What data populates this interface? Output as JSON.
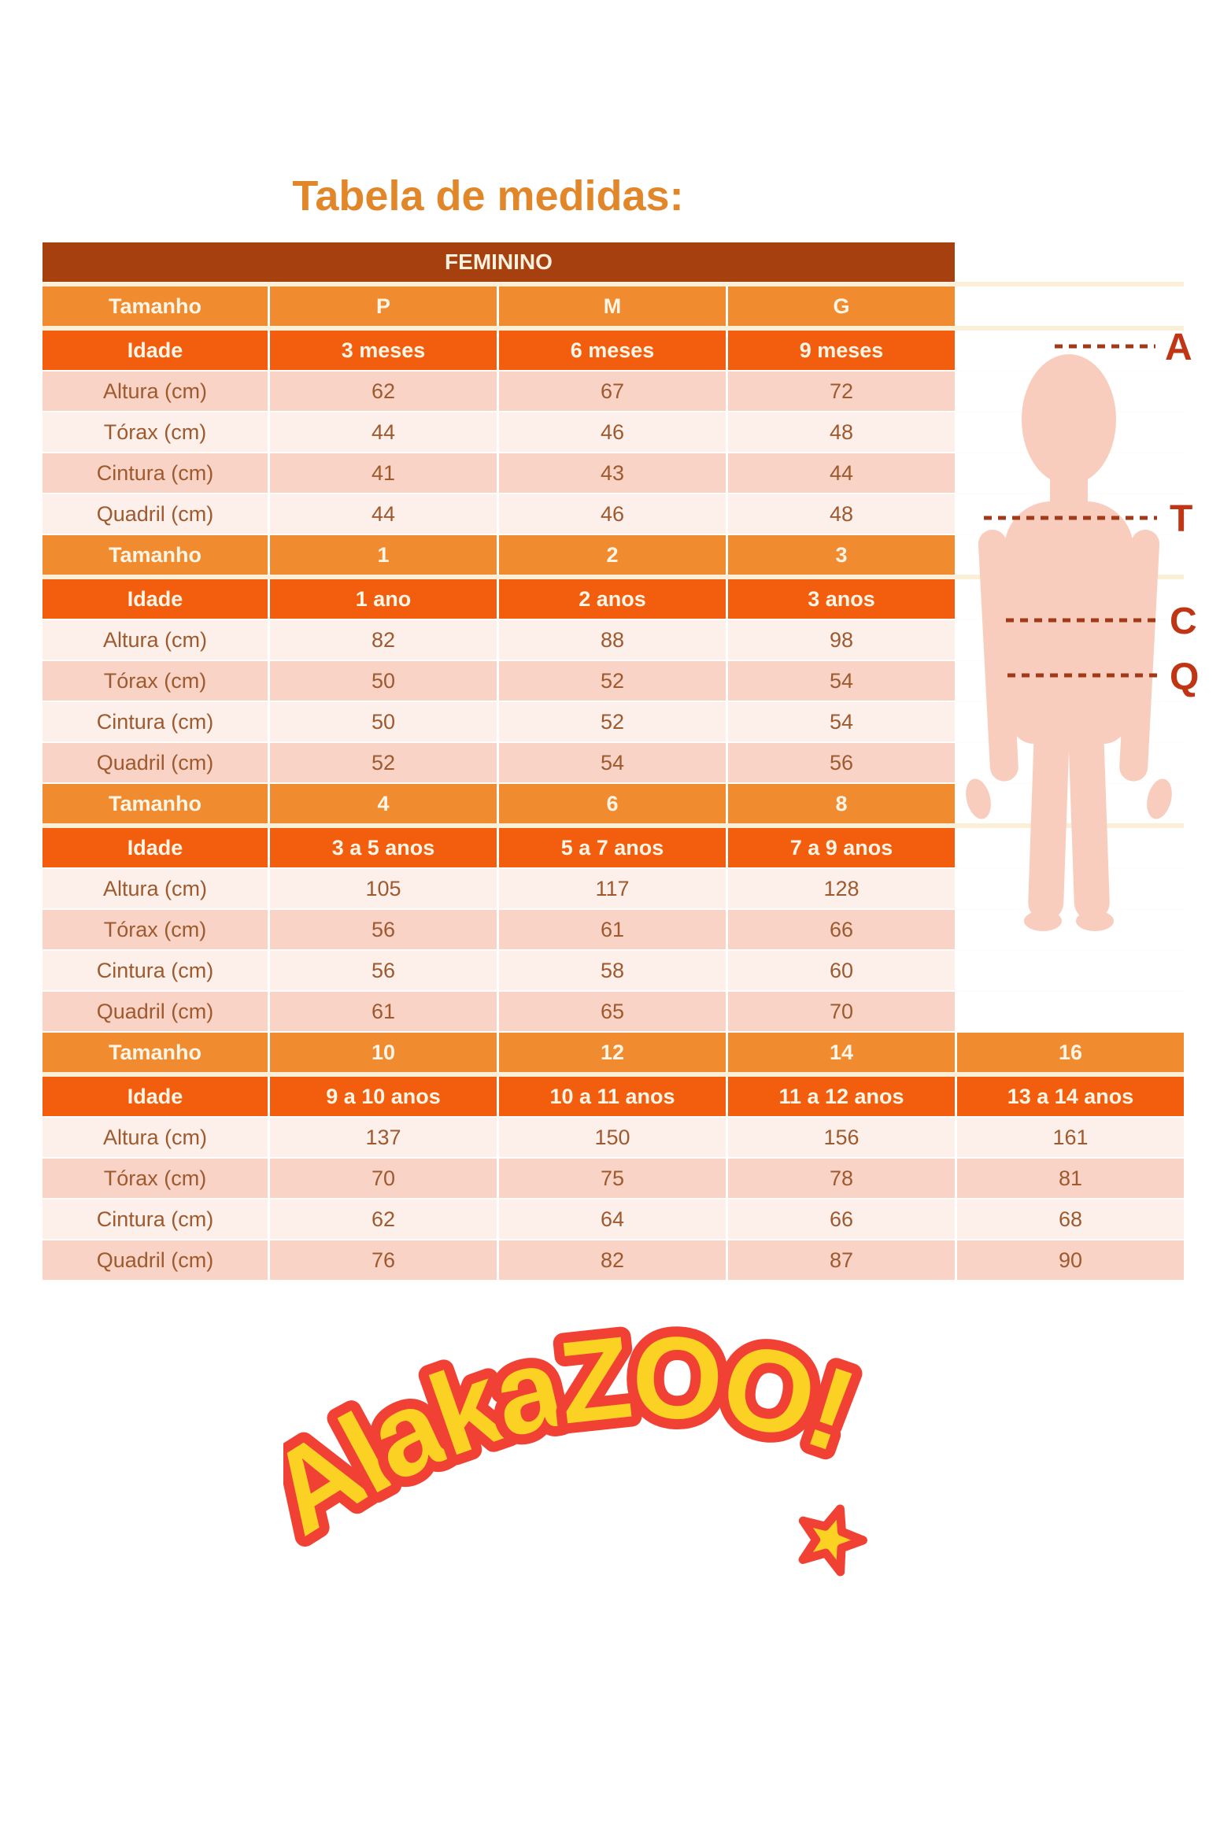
{
  "page": {
    "title": "Tabela de medidas:"
  },
  "colors": {
    "title": "#E2862A",
    "gender_header_bg": "#A6400F",
    "size_row_bg": "#F18B30",
    "age_row_bg": "#F25E0D",
    "header_text": "#FDF5E6",
    "row_dark": "#F9D3C5",
    "row_light": "#FDF0EB",
    "cell_text": "#9E5A2E",
    "separator": "#FBEFD8",
    "dash_line": "#A03A18",
    "measure_letter": "#C03514",
    "silhouette": "#F8CDBE",
    "logo_yellow": "#FBD224",
    "logo_red": "#F04134"
  },
  "table": {
    "gender_header": "FEMININO",
    "row_labels": {
      "size": "Tamanho",
      "age": "Idade",
      "height": "Altura (cm)",
      "chest": "Tórax (cm)",
      "waist": "Cintura (cm)",
      "hip": "Quadril (cm)"
    },
    "sections": [
      {
        "zebra_start": "dark",
        "sizes": [
          "P",
          "M",
          "G"
        ],
        "ages": [
          "3 meses",
          "6 meses",
          "9 meses"
        ],
        "height": [
          "62",
          "67",
          "72"
        ],
        "chest": [
          "44",
          "46",
          "48"
        ],
        "waist": [
          "41",
          "43",
          "44"
        ],
        "hip": [
          "44",
          "46",
          "48"
        ]
      },
      {
        "zebra_start": "light",
        "sizes": [
          "1",
          "2",
          "3"
        ],
        "ages": [
          "1 ano",
          "2 anos",
          "3 anos"
        ],
        "height": [
          "82",
          "88",
          "98"
        ],
        "chest": [
          "50",
          "52",
          "54"
        ],
        "waist": [
          "50",
          "52",
          "54"
        ],
        "hip": [
          "52",
          "54",
          "56"
        ]
      },
      {
        "zebra_start": "light",
        "sizes": [
          "4",
          "6",
          "8"
        ],
        "ages": [
          "3 a 5 anos",
          "5 a 7 anos",
          "7 a 9 anos"
        ],
        "height": [
          "105",
          "117",
          "128"
        ],
        "chest": [
          "56",
          "61",
          "66"
        ],
        "waist": [
          "56",
          "58",
          "60"
        ],
        "hip": [
          "61",
          "65",
          "70"
        ]
      },
      {
        "zebra_start": "light",
        "sizes": [
          "10",
          "12",
          "14",
          "16"
        ],
        "ages": [
          "9 a 10 anos",
          "10 a 11 anos",
          "11 a 12 anos",
          "13 a 14 anos"
        ],
        "height": [
          "137",
          "150",
          "156",
          "161"
        ],
        "chest": [
          "70",
          "75",
          "78",
          "81"
        ],
        "waist": [
          "62",
          "64",
          "66",
          "68"
        ],
        "hip": [
          "76",
          "82",
          "87",
          "90"
        ]
      }
    ]
  },
  "figure": {
    "labels": {
      "height": "A",
      "chest": "T",
      "waist": "C",
      "hip": "Q"
    }
  },
  "logo": {
    "text": "AlakaZOO!"
  }
}
